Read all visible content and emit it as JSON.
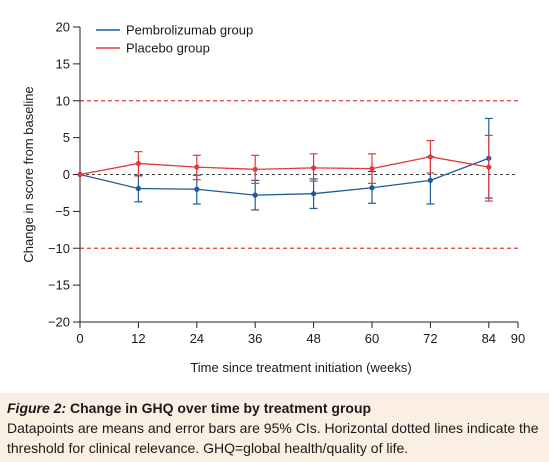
{
  "chart_data": {
    "type": "line",
    "x": [
      0,
      12,
      24,
      36,
      48,
      60,
      72,
      84
    ],
    "xlabel": "Time since treatment initiation (weeks)",
    "ylabel": "Change in score from baseline",
    "xlim": [
      0,
      90
    ],
    "ylim": [
      -20,
      20
    ],
    "xticks": [
      0,
      12,
      24,
      36,
      48,
      60,
      72,
      84,
      90
    ],
    "yticks": [
      -20,
      -15,
      -10,
      -5,
      0,
      5,
      10,
      15,
      20
    ],
    "ytick_labels": [
      "−20",
      "−15",
      "−10",
      "−5",
      "0",
      "5",
      "10",
      "15",
      "20"
    ],
    "grid": false,
    "legend_position": "top-left",
    "reference_lines": [
      {
        "y": 10,
        "style": "dotted",
        "color": "#e03b3b"
      },
      {
        "y": 0,
        "style": "dotted",
        "color": "#444444"
      },
      {
        "y": -10,
        "style": "dotted",
        "color": "#e03b3b"
      }
    ],
    "series": [
      {
        "name": "Pembrolizumab group",
        "color": "#1f5a9c",
        "x": [
          0,
          12,
          24,
          36,
          48,
          60,
          72,
          84
        ],
        "values": [
          0,
          -1.9,
          -2.0,
          -2.8,
          -2.6,
          -1.8,
          -0.8,
          2.2
        ],
        "ci_lower": [
          null,
          -3.7,
          -4.0,
          -4.8,
          -4.6,
          -3.9,
          -4.0,
          -3.2
        ],
        "ci_upper": [
          null,
          -0.1,
          -0.1,
          -0.8,
          -0.6,
          0.4,
          2.4,
          7.6
        ]
      },
      {
        "name": "Placebo group",
        "color": "#e03b3b",
        "x": [
          0,
          12,
          24,
          36,
          48,
          60,
          72,
          84
        ],
        "values": [
          0,
          1.5,
          1.0,
          0.7,
          0.9,
          0.8,
          2.4,
          1.0
        ],
        "ci_lower": [
          null,
          -0.2,
          -0.7,
          -1.2,
          -0.9,
          -1.2,
          0.2,
          -3.6
        ],
        "ci_upper": [
          null,
          3.1,
          2.6,
          2.6,
          2.8,
          2.8,
          4.6,
          5.3
        ]
      }
    ]
  },
  "caption": {
    "figure_label": "Figure 2:",
    "title": " Change in GHQ over time by treatment group",
    "body": "Datapoints are means and error bars are 95% CIs. Horizontal dotted lines indicate the threshold for clinical relevance. GHQ=global health/quality of life."
  }
}
